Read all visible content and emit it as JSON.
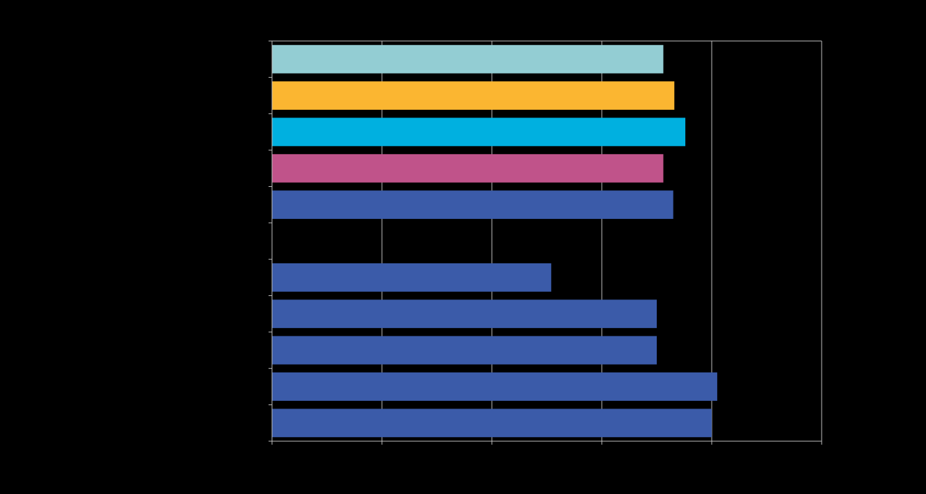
{
  "chart_data": {
    "type": "bar",
    "orientation": "horizontal",
    "title": "",
    "xlabel": "",
    "ylabel": "",
    "xlim": [
      0,
      5
    ],
    "x_gridlines": [
      1,
      2,
      3,
      4,
      5
    ],
    "grid": true,
    "legend": "none",
    "bars": [
      {
        "slot": 0,
        "value": 3.56,
        "color": "#93CDD3"
      },
      {
        "slot": 1,
        "value": 3.66,
        "color": "#FBB631"
      },
      {
        "slot": 2,
        "value": 3.76,
        "color": "#00B0E0"
      },
      {
        "slot": 3,
        "value": 3.56,
        "color": "#C0538A"
      },
      {
        "slot": 4,
        "value": 3.65,
        "color": "#3B5BA9"
      },
      {
        "slot": 6,
        "value": 2.54,
        "color": "#3B5BA9"
      },
      {
        "slot": 7,
        "value": 3.5,
        "color": "#3B5BA9"
      },
      {
        "slot": 8,
        "value": 3.5,
        "color": "#3B5BA9"
      },
      {
        "slot": 9,
        "value": 4.05,
        "color": "#3B5BA9"
      },
      {
        "slot": 10,
        "value": 4.0,
        "color": "#3B5BA9"
      }
    ],
    "slot_count": 11,
    "colors": {
      "background": "#000000",
      "axis": "#BFBFBF",
      "grid": "#BFBFBF"
    }
  }
}
